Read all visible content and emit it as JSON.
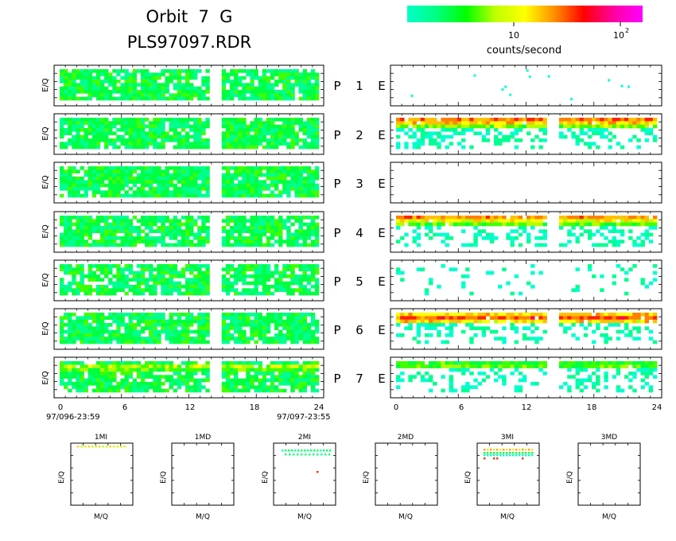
{
  "header": {
    "title": "Orbit  7  G",
    "file": "PLS97097.RDR"
  },
  "colorbar": {
    "label": "counts/second",
    "tick_labels": [
      "10",
      "10"
    ],
    "tick_exponent": "2",
    "gradient": [
      "#00ffc8",
      "#00ff80",
      "#00ff00",
      "#c0ff00",
      "#ffff00",
      "#ff9000",
      "#ff0000",
      "#ff00a0",
      "#ff00ff"
    ]
  },
  "rows": [
    {
      "p": "P",
      "n": "1",
      "e": "E"
    },
    {
      "p": "P",
      "n": "2",
      "e": "E"
    },
    {
      "p": "P",
      "n": "3",
      "e": "E"
    },
    {
      "p": "P",
      "n": "4",
      "e": "E"
    },
    {
      "p": "P",
      "n": "5",
      "e": "E"
    },
    {
      "p": "P",
      "n": "6",
      "e": "E"
    },
    {
      "p": "P",
      "n": "7",
      "e": "E"
    }
  ],
  "ylabel": "E/Q",
  "x_ticks": [
    "0",
    "6",
    "12",
    "18",
    "24"
  ],
  "time_start": "97/096-23:59",
  "time_end": "97/097-23:55",
  "bottom_panels": [
    {
      "title": "1MI",
      "xlabel": "M/Q",
      "ylabel": "E/Q"
    },
    {
      "title": "1MD",
      "xlabel": "M/Q",
      "ylabel": "E/Q"
    },
    {
      "title": "2MI",
      "xlabel": "M/Q",
      "ylabel": "E/Q"
    },
    {
      "title": "2MD",
      "xlabel": "M/Q",
      "ylabel": "E/Q"
    },
    {
      "title": "3MI",
      "xlabel": "M/Q",
      "ylabel": "E/Q"
    },
    {
      "title": "3MD",
      "xlabel": "M/Q",
      "ylabel": "E/Q"
    }
  ],
  "chart_data": {
    "type": "heatmap",
    "x_range": [
      0,
      24
    ],
    "x_gap": [
      13.9,
      14.8
    ],
    "colorscale_unit": "counts/second",
    "panels_P": [
      {
        "name": "P 1",
        "activity": 0.85,
        "bands": []
      },
      {
        "name": "P 2",
        "activity": 0.88,
        "bands": []
      },
      {
        "name": "P 3",
        "activity": 0.9,
        "bands": []
      },
      {
        "name": "P 4",
        "activity": 0.85,
        "bands": []
      },
      {
        "name": "P 5",
        "activity": 0.78,
        "bands": []
      },
      {
        "name": "P 6",
        "activity": 0.85,
        "bands": []
      },
      {
        "name": "P 7",
        "activity": 0.8,
        "bands": [
          {
            "row": 1,
            "level": 0.45
          },
          {
            "row": 2,
            "level": 0.35
          }
        ]
      }
    ],
    "panels_E": [
      {
        "name": "E 1",
        "activity": 0.0,
        "sparse": 12,
        "bands": []
      },
      {
        "name": "E 2",
        "activity": 0.55,
        "sparse": 0,
        "bands": [
          {
            "row": 0,
            "level": 0.72
          },
          {
            "row": 1,
            "level": 0.62
          },
          {
            "row": 2,
            "level": 0.4
          }
        ]
      },
      {
        "name": "E 3",
        "activity": 0.0,
        "sparse": 0,
        "bands": []
      },
      {
        "name": "E 4",
        "activity": 0.55,
        "sparse": 0,
        "bands": [
          {
            "row": 0,
            "level": 0.72
          },
          {
            "row": 1,
            "level": 0.55
          },
          {
            "row": 2,
            "level": 0.35
          }
        ]
      },
      {
        "name": "E 5",
        "activity": 0.15,
        "sparse": 0,
        "bands": []
      },
      {
        "name": "E 6",
        "activity": 0.55,
        "sparse": 0,
        "bands": [
          {
            "row": 0,
            "level": 0.62
          },
          {
            "row": 1,
            "level": 0.8
          },
          {
            "row": 2,
            "level": 0.6
          }
        ]
      },
      {
        "name": "E 7",
        "activity": 0.45,
        "sparse": 0,
        "bands": [
          {
            "row": 0,
            "level": 0.3
          },
          {
            "row": 1,
            "level": 0.35
          }
        ]
      }
    ]
  }
}
